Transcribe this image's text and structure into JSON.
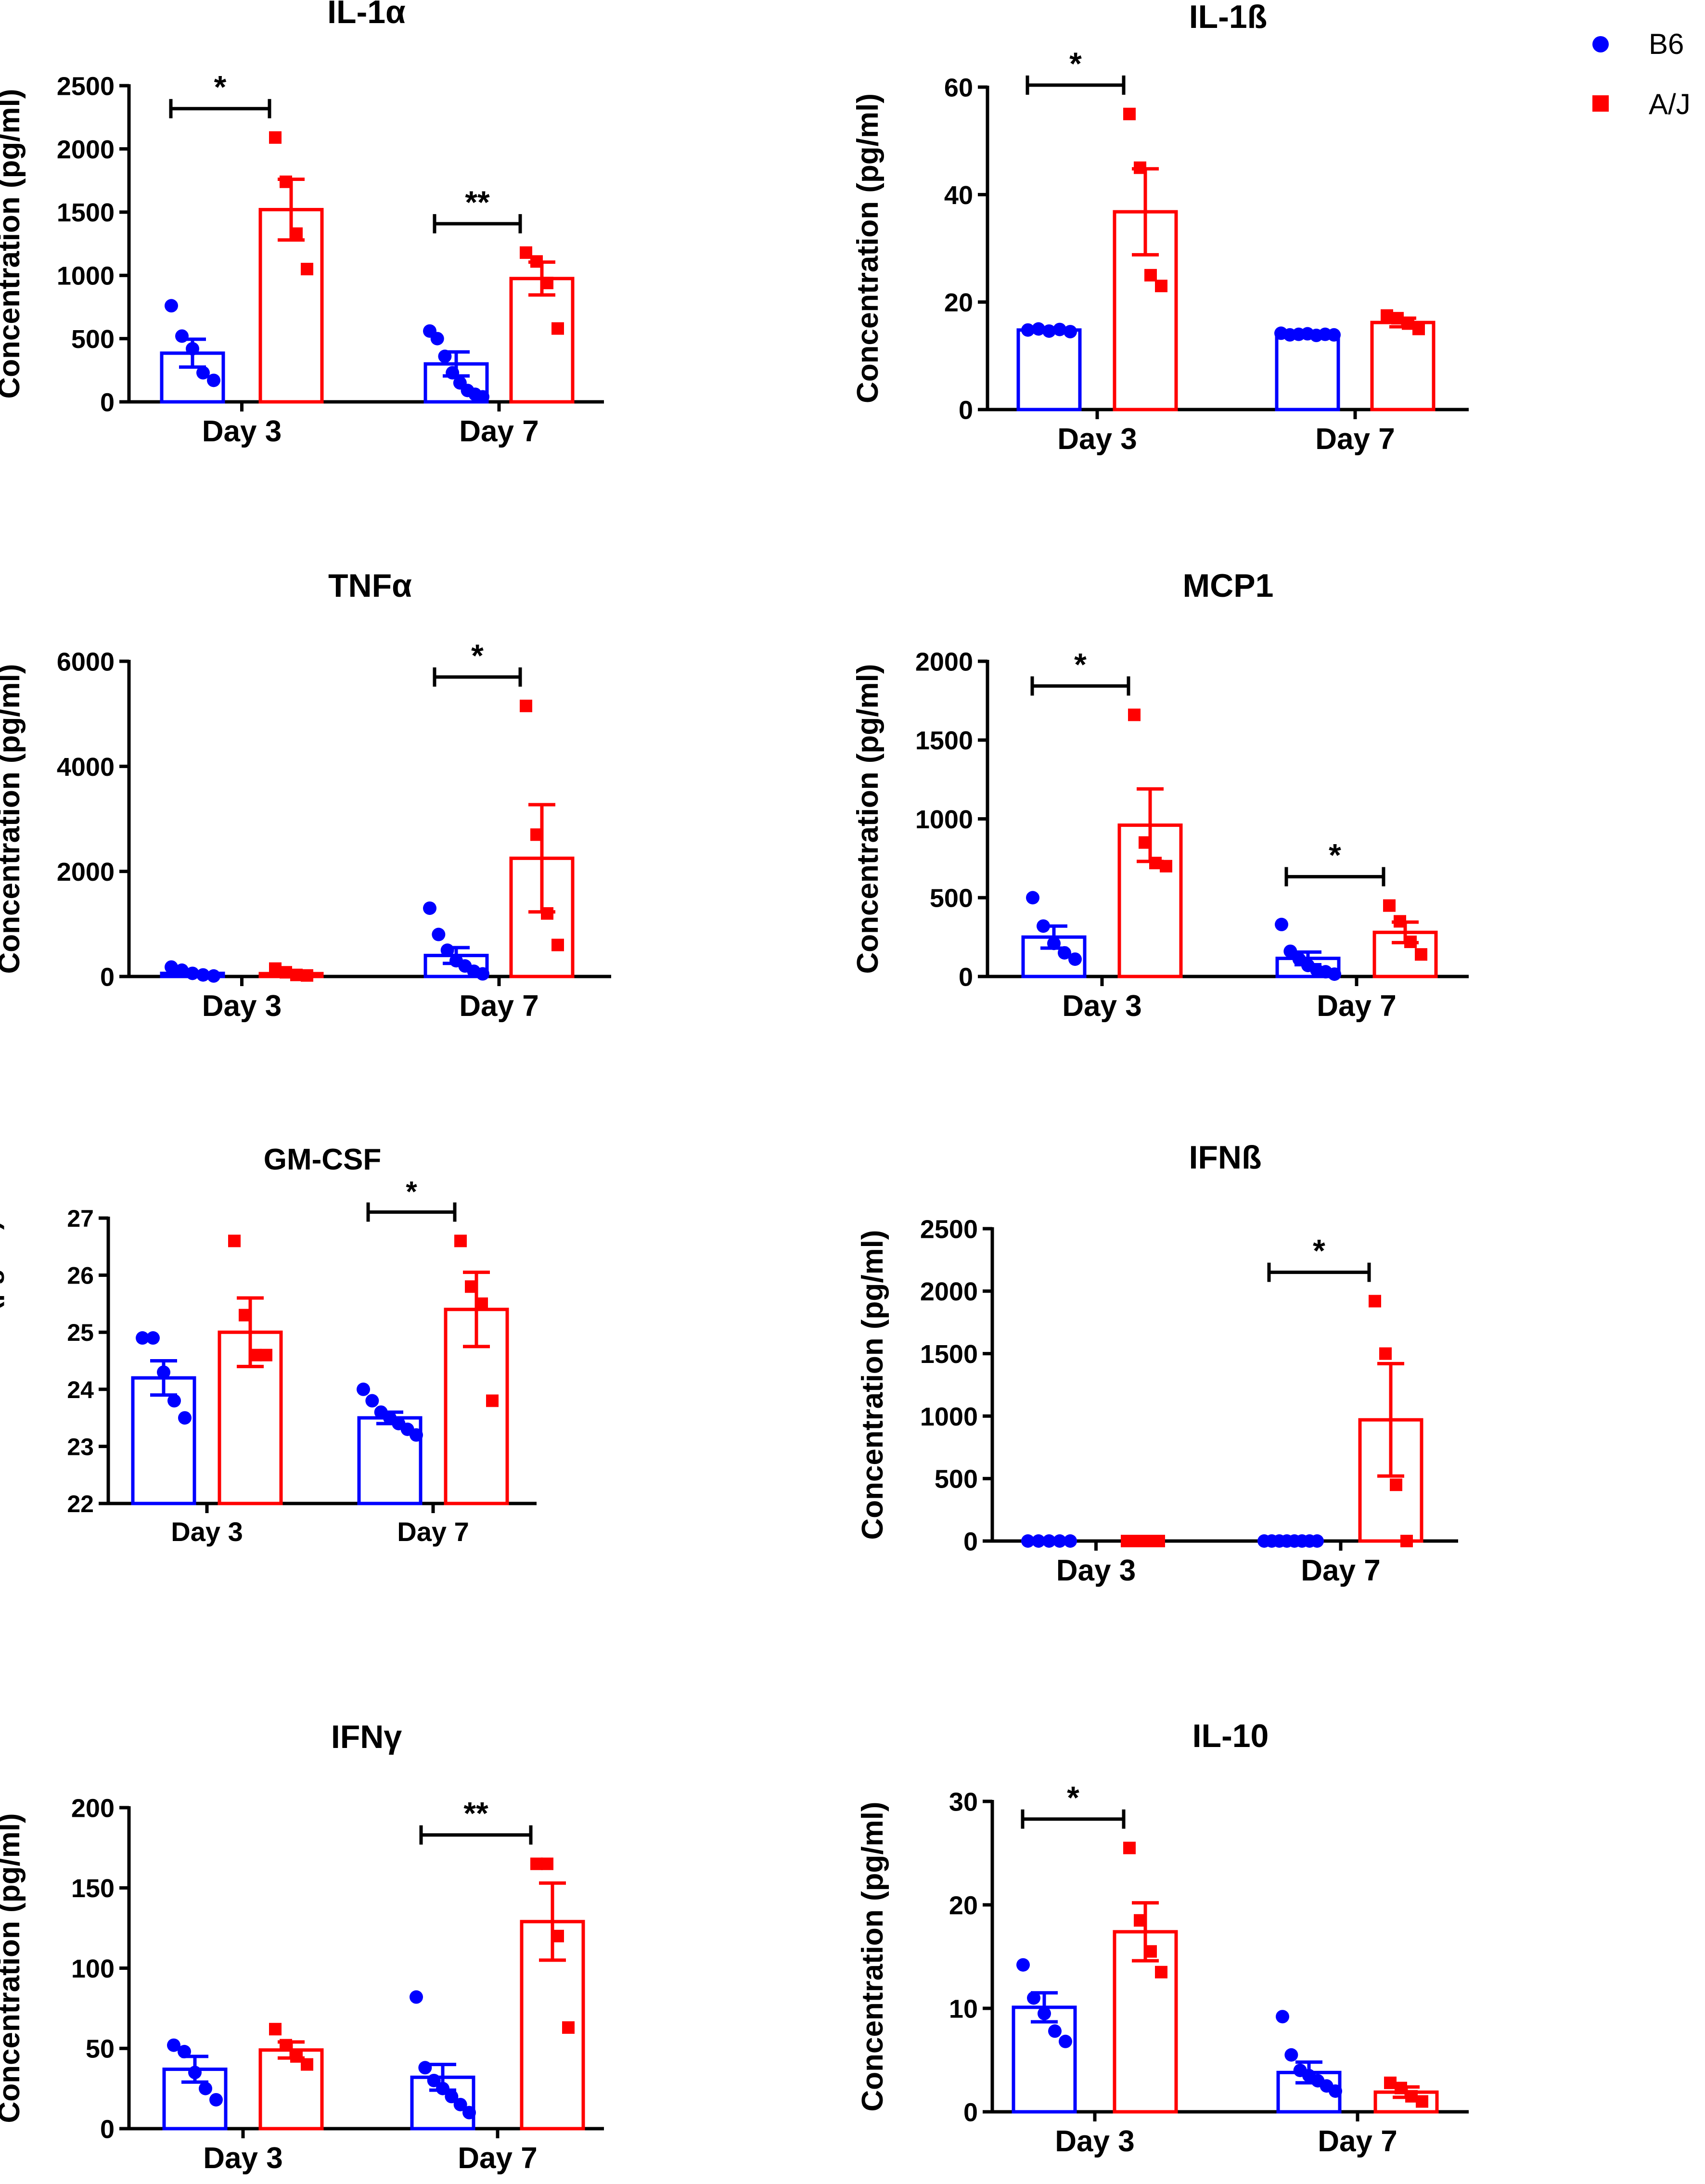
{
  "legend": {
    "entries": [
      {
        "name": "B6",
        "color": "#0000ff",
        "marker": "circle"
      },
      {
        "name": "A/J",
        "color": "#ff0000",
        "marker": "square"
      }
    ]
  },
  "chart_data": [
    {
      "type": "bar",
      "title": "IL-1α",
      "ylabel": "Concentration (pg/ml)",
      "ylim": [
        0,
        2500
      ],
      "yticks": [
        0,
        500,
        1000,
        1500,
        2000,
        2500
      ],
      "categories": [
        "Day 3",
        "Day 7"
      ],
      "series": [
        {
          "name": "B6",
          "color": "#0000ff",
          "values": [
            385,
            300
          ],
          "sem": [
            110,
            95
          ],
          "points": [
            [
              760,
              520,
              420,
              230,
              170
            ],
            [
              560,
              500,
              360,
              230,
              150,
              90,
              60,
              40
            ]
          ]
        },
        {
          "name": "A/J",
          "color": "#ff0000",
          "values": [
            1520,
            975
          ],
          "sem": [
            240,
            130
          ],
          "points": [
            [
              2090,
              1740,
              1330,
              1050
            ],
            [
              1180,
              1110,
              940,
              580
            ]
          ]
        }
      ],
      "significance": [
        {
          "category": "Day 3",
          "label": "*"
        },
        {
          "category": "Day 7",
          "label": "**"
        }
      ]
    },
    {
      "type": "bar",
      "title": "IL-1ß",
      "ylabel": "Concentration (pg/ml)",
      "ylim": [
        0,
        60
      ],
      "yticks": [
        0,
        20,
        40,
        60
      ],
      "categories": [
        "Day 3",
        "Day 7"
      ],
      "series": [
        {
          "name": "B6",
          "color": "#0000ff",
          "values": [
            14.8,
            14.0
          ],
          "sem": [
            0.3,
            0.2
          ],
          "points": [
            [
              14.8,
              15.0,
              14.6,
              14.9,
              14.5
            ],
            [
              14.2,
              13.9,
              14.0,
              14.1,
              13.8,
              14.0,
              13.9
            ]
          ]
        },
        {
          "name": "A/J",
          "color": "#ff0000",
          "values": [
            36.8,
            16.2
          ],
          "sem": [
            8.0,
            0.8
          ],
          "points": [
            [
              55,
              45,
              25,
              23
            ],
            [
              17.5,
              17.0,
              16.0,
              15.0
            ]
          ]
        }
      ],
      "significance": [
        {
          "category": "Day 3",
          "label": "*"
        }
      ]
    },
    {
      "type": "bar",
      "title": "TNFα",
      "ylabel": "Concentration (pg/ml)",
      "ylim": [
        0,
        6000
      ],
      "yticks": [
        0,
        2000,
        4000,
        6000
      ],
      "categories": [
        "Day 3",
        "Day 7"
      ],
      "series": [
        {
          "name": "B6",
          "color": "#0000ff",
          "values": [
            60,
            400
          ],
          "sem": [
            30,
            150
          ],
          "points": [
            [
              180,
              120,
              60,
              30,
              10
            ],
            [
              1300,
              800,
              500,
              300,
              200,
              100,
              50
            ]
          ]
        },
        {
          "name": "A/J",
          "color": "#ff0000",
          "values": [
            55,
            2250
          ],
          "sem": [
            25,
            1020
          ],
          "points": [
            [
              150,
              80,
              30,
              20
            ],
            [
              5150,
              2700,
              1200,
              600
            ]
          ]
        }
      ],
      "significance": [
        {
          "category": "Day 7",
          "label": "*"
        }
      ]
    },
    {
      "type": "bar",
      "title": "MCP1",
      "ylabel": "Concentration (pg/ml)",
      "ylim": [
        0,
        2000
      ],
      "yticks": [
        0,
        500,
        1000,
        1500,
        2000
      ],
      "categories": [
        "Day 3",
        "Day 7"
      ],
      "series": [
        {
          "name": "B6",
          "color": "#0000ff",
          "values": [
            250,
            115
          ],
          "sem": [
            70,
            40
          ],
          "points": [
            [
              500,
              320,
              210,
              150,
              110
            ],
            [
              330,
              160,
              110,
              70,
              40,
              30,
              15
            ]
          ]
        },
        {
          "name": "A/J",
          "color": "#ff0000",
          "values": [
            960,
            280
          ],
          "sem": [
            230,
            65
          ],
          "points": [
            [
              1660,
              850,
              720,
              700
            ],
            [
              450,
              350,
              220,
              140
            ]
          ]
        }
      ],
      "significance": [
        {
          "category": "Day 3",
          "label": "*"
        },
        {
          "category": "Day 7",
          "label": "*"
        }
      ]
    },
    {
      "type": "bar",
      "title": "GM-CSF",
      "ylabel": "Concentration (pg/ml)",
      "ylim": [
        22,
        27
      ],
      "yticks": [
        22,
        23,
        24,
        25,
        26,
        27
      ],
      "categories": [
        "Day 3",
        "Day 7"
      ],
      "series": [
        {
          "name": "B6",
          "color": "#0000ff",
          "values": [
            24.2,
            23.5
          ],
          "sem": [
            0.3,
            0.1
          ],
          "points": [
            [
              24.9,
              24.9,
              24.3,
              23.8,
              23.5
            ],
            [
              24.0,
              23.8,
              23.6,
              23.5,
              23.4,
              23.3,
              23.2
            ]
          ]
        },
        {
          "name": "A/J",
          "color": "#ff0000",
          "values": [
            25.0,
            25.4
          ],
          "sem": [
            0.6,
            0.65
          ],
          "points": [
            [
              26.6,
              25.3,
              24.6,
              24.6
            ],
            [
              26.6,
              25.8,
              25.5,
              23.8
            ]
          ]
        }
      ],
      "significance": [
        {
          "category": "Day 7",
          "label": "*"
        }
      ]
    },
    {
      "type": "bar",
      "title": "IFNß",
      "ylabel": "Concentration (pg/ml)",
      "ylim": [
        0,
        2500
      ],
      "yticks": [
        0,
        500,
        1000,
        1500,
        2000,
        2500
      ],
      "categories": [
        "Day 3",
        "Day 7"
      ],
      "series": [
        {
          "name": "B6",
          "color": "#0000ff",
          "values": [
            0,
            0
          ],
          "sem": [
            0,
            0
          ],
          "points": [
            [
              0,
              0,
              0,
              0,
              0
            ],
            [
              0,
              0,
              0,
              0,
              0,
              0,
              0,
              0
            ]
          ]
        },
        {
          "name": "A/J",
          "color": "#ff0000",
          "values": [
            0,
            970
          ],
          "sem": [
            0,
            450
          ],
          "points": [
            [
              0,
              0,
              0,
              0
            ],
            [
              1920,
              1500,
              450,
              0
            ]
          ]
        }
      ],
      "significance": [
        {
          "category": "Day 7",
          "label": "*"
        }
      ]
    },
    {
      "type": "bar",
      "title": "IFNγ",
      "ylabel": "Concentration (pg/ml)",
      "ylim": [
        0,
        200
      ],
      "yticks": [
        0,
        50,
        100,
        150,
        200
      ],
      "categories": [
        "Day 3",
        "Day 7"
      ],
      "series": [
        {
          "name": "B6",
          "color": "#0000ff",
          "values": [
            37,
            32
          ],
          "sem": [
            8,
            8
          ],
          "points": [
            [
              52,
              48,
              35,
              25,
              18
            ],
            [
              82,
              38,
              30,
              25,
              20,
              15,
              10
            ]
          ]
        },
        {
          "name": "A/J",
          "color": "#ff0000",
          "values": [
            49,
            129
          ],
          "sem": [
            5,
            24
          ],
          "points": [
            [
              62,
              52,
              45,
              40
            ],
            [
              165,
              165,
              120,
              63
            ]
          ]
        }
      ],
      "significance": [
        {
          "category": "Day 7",
          "label": "**"
        }
      ]
    },
    {
      "type": "bar",
      "title": "IL-10",
      "ylabel": "Concentration (pg/ml)",
      "ylim": [
        0,
        30
      ],
      "yticks": [
        0,
        10,
        20,
        30
      ],
      "categories": [
        "Day 3",
        "Day 7"
      ],
      "series": [
        {
          "name": "B6",
          "color": "#0000ff",
          "values": [
            10.1,
            3.8
          ],
          "sem": [
            1.4,
            1.0
          ],
          "points": [
            [
              14.2,
              11.0,
              9.5,
              7.8,
              6.8
            ],
            [
              9.2,
              5.5,
              4.0,
              3.5,
              3.0,
              2.5,
              2.0
            ]
          ]
        },
        {
          "name": "A/J",
          "color": "#ff0000",
          "values": [
            17.4,
            1.9
          ],
          "sem": [
            2.8,
            0.5
          ],
          "points": [
            [
              25.5,
              18.5,
              15.5,
              13.5
            ],
            [
              2.8,
              2.3,
              1.5,
              1.0
            ]
          ]
        }
      ],
      "significance": [
        {
          "category": "Day 3",
          "label": "*"
        }
      ]
    }
  ]
}
